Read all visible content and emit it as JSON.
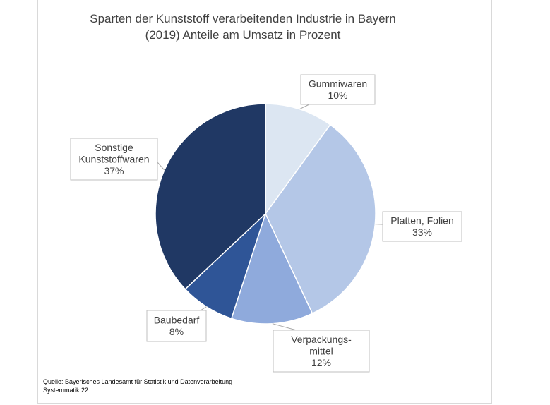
{
  "chart_data": {
    "type": "pie",
    "title": [
      "Sparten der Kunststoff verarbeitenden Industrie in Bayern",
      "(2019) Anteile am Umsatz in Prozent"
    ],
    "slices": [
      {
        "name": "Gummiwaren",
        "label_lines": [
          "Gummiwaren"
        ],
        "value": 10,
        "value_label": "10%",
        "color": "#dce6f2"
      },
      {
        "name": "Platten, Folien",
        "label_lines": [
          "Platten,  Folien"
        ],
        "value": 33,
        "value_label": "33%",
        "color": "#b4c7e7"
      },
      {
        "name": "Verpackungsmittel",
        "label_lines": [
          "Verpackungs-",
          "mittel"
        ],
        "value": 12,
        "value_label": "12%",
        "color": "#8faadc"
      },
      {
        "name": "Baubedarf",
        "label_lines": [
          "Baubedarf"
        ],
        "value": 8,
        "value_label": "8%",
        "color": "#2f5597"
      },
      {
        "name": "Sonstige Kunststoffwaren",
        "label_lines": [
          "Sonstige",
          "Kunststoffwaren"
        ],
        "value": 37,
        "value_label": "37%",
        "color": "#203864"
      }
    ],
    "start": "12 o'clock, clockwise",
    "legend": "none",
    "source": [
      "Quelle:  Bayerisches Landesamt für Statistik und Datenverarbeitung",
      "Systemmatik 22"
    ]
  }
}
